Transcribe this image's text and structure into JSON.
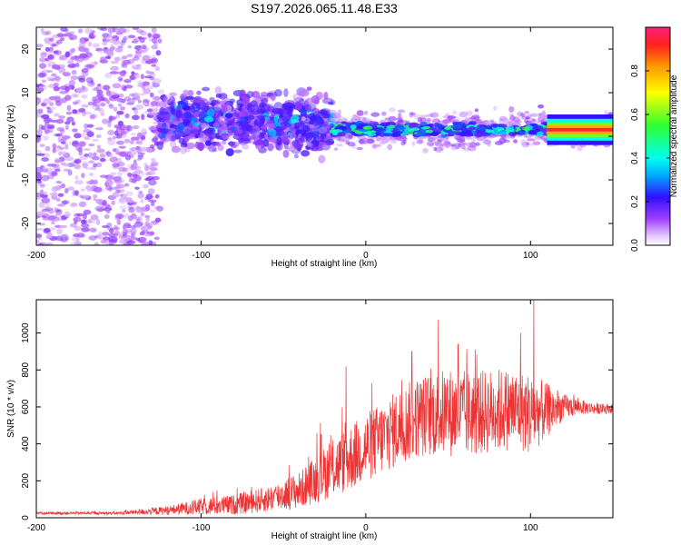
{
  "chart_data": [
    {
      "type": "heatmap",
      "title": "S197.2026.065.11.48.E33",
      "xlabel": "Height of straight line (km)",
      "ylabel": "Frequency (Hz)",
      "xlim": [
        -200,
        150
      ],
      "ylim": [
        -25,
        25
      ],
      "x_ticks": [
        -200,
        -100,
        0,
        100
      ],
      "x_tick_labels": [
        "-200",
        "-100",
        "0",
        "100"
      ],
      "y_ticks": [
        -20,
        -10,
        0,
        10,
        20
      ],
      "y_tick_labels": [
        "-20",
        "-10",
        "0",
        "10",
        "20"
      ],
      "colorbar": {
        "label": "Normalized spectral amplitude",
        "range": [
          0,
          1
        ],
        "ticks": [
          0.0,
          0.2,
          0.4,
          0.6,
          0.8
        ],
        "tick_labels": [
          "0.0",
          "0.2",
          "0.4",
          "0.6",
          "0.8"
        ]
      },
      "features": {
        "noise_region_x": [
          -200,
          -125
        ],
        "dispersed_band_x": [
          -125,
          -20
        ],
        "dispersed_band_center_hz": 4,
        "narrow_band_x": [
          -20,
          150
        ],
        "narrow_band_center_hz": 1.5,
        "peak_amplitude_x": [
          110,
          150
        ]
      }
    },
    {
      "type": "line",
      "xlabel": "Height of straight line (km)",
      "ylabel": "SNR (10 * v/v)",
      "xlim": [
        -200,
        150
      ],
      "ylim": [
        0,
        1180
      ],
      "x_ticks": [
        -200,
        -100,
        0,
        100
      ],
      "x_tick_labels": [
        "-200",
        "-100",
        "0",
        "100"
      ],
      "y_ticks": [
        0,
        200,
        400,
        600,
        800,
        1000
      ],
      "y_tick_labels": [
        "0",
        "200",
        "400",
        "600",
        "800",
        "1000"
      ],
      "color": "#ee3333",
      "series_envelope": {
        "x": [
          -200,
          -150,
          -120,
          -100,
          -80,
          -60,
          -40,
          -30,
          -20,
          -10,
          0,
          10,
          20,
          30,
          40,
          50,
          60,
          70,
          80,
          90,
          100,
          110,
          120,
          130,
          140,
          150
        ],
        "baseline": [
          25,
          25,
          40,
          60,
          70,
          100,
          150,
          210,
          270,
          320,
          380,
          430,
          490,
          540,
          560,
          570,
          560,
          570,
          580,
          590,
          560,
          580,
          600,
          600,
          590,
          590
        ],
        "spread": [
          8,
          8,
          25,
          45,
          55,
          70,
          100,
          130,
          160,
          180,
          190,
          200,
          210,
          220,
          230,
          240,
          240,
          230,
          230,
          220,
          220,
          150,
          70,
          40,
          30,
          25
        ]
      },
      "notable_spikes": [
        {
          "x": -27,
          "y": 450
        },
        {
          "x": -12,
          "y": 820
        },
        {
          "x": 28,
          "y": 900
        },
        {
          "x": 56,
          "y": 940
        },
        {
          "x": 94,
          "y": 1000
        },
        {
          "x": 102,
          "y": 1180
        }
      ]
    }
  ]
}
